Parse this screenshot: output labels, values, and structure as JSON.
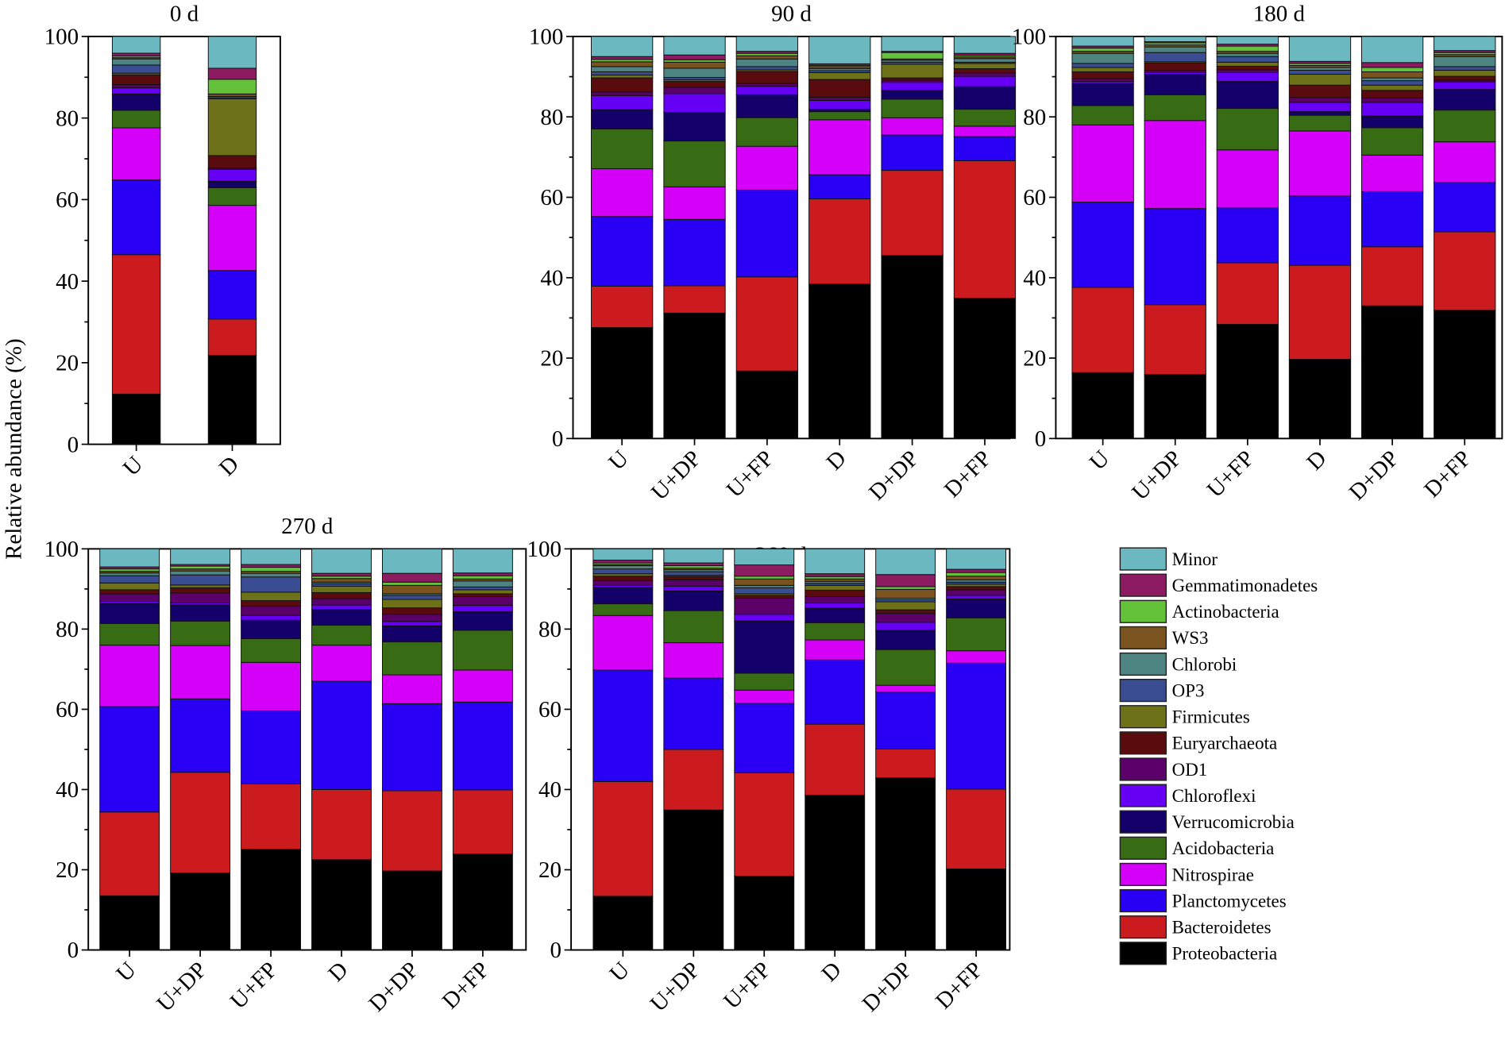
{
  "chart_data": {
    "type": "bar",
    "stacked": true,
    "ylabel": "Relative abundance (%)",
    "ylim": [
      0,
      100
    ],
    "yticks": [
      0,
      20,
      40,
      60,
      80,
      100
    ],
    "legend_position": "bottom-right",
    "series_names": [
      "Proteobacteria",
      "Bacteroidetes",
      "Planctomycetes",
      "Nitrospirae",
      "Acidobacteria",
      "Verrucomicrobia",
      "Chloroflexi",
      "OD1",
      "Euryarchaeota",
      "Firmicutes",
      "OP3",
      "Chlorobi",
      "WS3",
      "Actinobacteria",
      "Gemmatimonadetes",
      "Minor"
    ],
    "colors": {
      "Proteobacteria": "#000000",
      "Bacteroidetes": "#cc1b1e",
      "Planctomycetes": "#2a00f5",
      "Nitrospirae": "#d400f7",
      "Acidobacteria": "#386c14",
      "Verrucomicrobia": "#13006a",
      "Chloroflexi": "#6600f5",
      "OD1": "#5a0068",
      "Euryarchaeota": "#5a0b0d",
      "Firmicutes": "#6d7218",
      "OP3": "#3a4d92",
      "Chlorobi": "#4d8482",
      "WS3": "#7a531e",
      "Actinobacteria": "#64c23a",
      "Gemmatimonadetes": "#8c1b62",
      "Minor": "#6bb8c0"
    },
    "legend_order": [
      "Minor",
      "Gemmatimonadetes",
      "Actinobacteria",
      "WS3",
      "Chlorobi",
      "OP3",
      "Firmicutes",
      "Euryarchaeota",
      "OD1",
      "Chloroflexi",
      "Verrucomicrobia",
      "Acidobacteria",
      "Nitrospirae",
      "Planctomycetes",
      "Bacteroidetes",
      "Proteobacteria"
    ],
    "panels": [
      {
        "title": "0 d",
        "categories": [
          "U",
          "D"
        ],
        "series": [
          {
            "name": "Proteobacteria",
            "values": [
              12.3,
              21.8
            ]
          },
          {
            "name": "Bacteroidetes",
            "values": [
              34.2,
              8.9
            ]
          },
          {
            "name": "Planctomycetes",
            "values": [
              18.3,
              11.9
            ]
          },
          {
            "name": "Nitrospirae",
            "values": [
              12.8,
              16.0
            ]
          },
          {
            "name": "Acidobacteria",
            "values": [
              4.3,
              4.3
            ]
          },
          {
            "name": "Verrucomicrobia",
            "values": [
              4.0,
              1.6
            ]
          },
          {
            "name": "Chloroflexi",
            "values": [
              1.5,
              2.9
            ]
          },
          {
            "name": "OD1",
            "values": [
              0.8,
              0.3
            ]
          },
          {
            "name": "Euryarchaeota",
            "values": [
              2.4,
              3.1
            ]
          },
          {
            "name": "Firmicutes",
            "values": [
              0.4,
              13.9
            ]
          },
          {
            "name": "OP3",
            "values": [
              2.0,
              0.3
            ]
          },
          {
            "name": "Chlorobi",
            "values": [
              1.5,
              0.3
            ]
          },
          {
            "name": "WS3",
            "values": [
              0.3,
              0.6
            ]
          },
          {
            "name": "Actinobacteria",
            "values": [
              0.4,
              3.6
            ]
          },
          {
            "name": "Gemmatimonadetes",
            "values": [
              0.7,
              2.7
            ]
          },
          {
            "name": "Minor",
            "values": [
              4.1,
              7.8
            ]
          }
        ]
      },
      {
        "title": "90 d",
        "categories": [
          "U",
          "U+DP",
          "U+FP",
          "D",
          "D+DP",
          "D+FP"
        ],
        "series": [
          {
            "name": "Proteobacteria",
            "values": [
              27.6,
              31.2,
              16.8,
              38.4,
              45.5,
              34.9
            ]
          },
          {
            "name": "Bacteroidetes",
            "values": [
              10.3,
              6.8,
              23.4,
              21.2,
              21.2,
              34.2
            ]
          },
          {
            "name": "Planctomycetes",
            "values": [
              17.3,
              16.5,
              21.6,
              6.0,
              8.8,
              6.0
            ]
          },
          {
            "name": "Nitrospirae",
            "values": [
              11.9,
              8.1,
              10.9,
              13.7,
              4.3,
              2.6
            ]
          },
          {
            "name": "Acidobacteria",
            "values": [
              9.9,
              11.4,
              7.1,
              2.0,
              4.6,
              4.2
            ]
          },
          {
            "name": "Verrucomicrobia",
            "values": [
              4.8,
              7.1,
              5.7,
              0.6,
              2.2,
              5.6
            ]
          },
          {
            "name": "Chloroflexi",
            "values": [
              3.5,
              4.7,
              2.1,
              2.2,
              2.0,
              2.6
            ]
          },
          {
            "name": "OD1",
            "values": [
              0.9,
              1.6,
              0.7,
              0.8,
              0.5,
              0.8
            ]
          },
          {
            "name": "Euryarchaeota",
            "values": [
              3.5,
              1.4,
              3.0,
              4.4,
              0.6,
              1.1
            ]
          },
          {
            "name": "Firmicutes",
            "values": [
              0.7,
              0.4,
              0.4,
              1.7,
              3.4,
              1.3
            ]
          },
          {
            "name": "OP3",
            "values": [
              0.8,
              0.6,
              0.8,
              0.5,
              0.5,
              0.3
            ]
          },
          {
            "name": "Chlorobi",
            "values": [
              1.3,
              2.3,
              1.9,
              0.5,
              0.5,
              0.9
            ]
          },
          {
            "name": "WS3",
            "values": [
              1.2,
              1.5,
              0.8,
              0.5,
              0.3,
              0.4
            ]
          },
          {
            "name": "Actinobacteria",
            "values": [
              0.6,
              0.6,
              0.6,
              0.3,
              1.6,
              0.4
            ]
          },
          {
            "name": "Gemmatimonadetes",
            "values": [
              0.7,
              1.2,
              0.5,
              0.4,
              0.3,
              0.5
            ]
          },
          {
            "name": "Minor",
            "values": [
              5.0,
              4.6,
              3.7,
              6.8,
              3.7,
              4.2
            ]
          }
        ]
      },
      {
        "title": "180 d",
        "categories": [
          "U",
          "U+DP",
          "U+FP",
          "D",
          "D+DP",
          "D+FP"
        ],
        "series": [
          {
            "name": "Proteobacteria",
            "values": [
              16.4,
              15.9,
              28.4,
              19.7,
              33.0,
              31.9
            ]
          },
          {
            "name": "Bacteroidetes",
            "values": [
              21.2,
              17.4,
              15.3,
              23.4,
              14.7,
              19.5
            ]
          },
          {
            "name": "Planctomycetes",
            "values": [
              21.2,
              23.9,
              13.7,
              17.2,
              13.7,
              12.3
            ]
          },
          {
            "name": "Nitrospirae",
            "values": [
              19.2,
              21.9,
              14.4,
              16.2,
              9.1,
              10.1
            ]
          },
          {
            "name": "Acidobacteria",
            "values": [
              4.8,
              6.4,
              10.3,
              3.9,
              6.8,
              7.9
            ]
          },
          {
            "name": "Verrucomicrobia",
            "values": [
              5.5,
              5.1,
              6.7,
              0.9,
              2.9,
              5.1
            ]
          },
          {
            "name": "Chloroflexi",
            "values": [
              0.5,
              0.4,
              2.2,
              2.3,
              3.4,
              1.9
            ]
          },
          {
            "name": "OD1",
            "values": [
              0.7,
              0.5,
              0.7,
              1.2,
              1.1,
              0.4
            ]
          },
          {
            "name": "Euryarchaeota",
            "values": [
              1.7,
              1.9,
              0.9,
              3.1,
              1.9,
              1.0
            ]
          },
          {
            "name": "Firmicutes",
            "values": [
              1.1,
              0.3,
              1.0,
              2.7,
              1.3,
              1.5
            ]
          },
          {
            "name": "OP3",
            "values": [
              1.0,
              2.3,
              1.4,
              1.0,
              1.1,
              0.9
            ]
          },
          {
            "name": "Chlorobi",
            "values": [
              2.5,
              1.4,
              0.8,
              0.7,
              0.7,
              2.5
            ]
          },
          {
            "name": "WS3",
            "values": [
              0.5,
              0.5,
              0.5,
              0.5,
              1.5,
              0.5
            ]
          },
          {
            "name": "Actinobacteria",
            "values": [
              0.8,
              0.5,
              1.3,
              0.5,
              1.1,
              0.5
            ]
          },
          {
            "name": "Gemmatimonadetes",
            "values": [
              0.5,
              0.3,
              0.5,
              0.5,
              1.2,
              0.5
            ]
          },
          {
            "name": "Minor",
            "values": [
              2.4,
              1.3,
              1.9,
              6.2,
              6.5,
              3.5
            ]
          }
        ]
      },
      {
        "title": "270 d",
        "categories": [
          "U",
          "U+DP",
          "U+FP",
          "D",
          "D+DP",
          "D+FP"
        ],
        "series": [
          {
            "name": "Proteobacteria",
            "values": [
              13.5,
              19.2,
              25.1,
              22.5,
              19.7,
              23.9
            ]
          },
          {
            "name": "Bacteroidetes",
            "values": [
              20.9,
              25.1,
              16.3,
              17.5,
              20.0,
              16.0
            ]
          },
          {
            "name": "Planctomycetes",
            "values": [
              26.3,
              18.3,
              18.2,
              27.0,
              21.7,
              21.9
            ]
          },
          {
            "name": "Nitrospirae",
            "values": [
              15.3,
              13.3,
              12.1,
              9.0,
              7.2,
              8.0
            ]
          },
          {
            "name": "Acidobacteria",
            "values": [
              5.4,
              6.1,
              5.9,
              5.0,
              8.2,
              9.9
            ]
          },
          {
            "name": "Verrucomicrobia",
            "values": [
              5.0,
              4.0,
              4.6,
              3.9,
              4.0,
              4.6
            ]
          },
          {
            "name": "Chloroflexi",
            "values": [
              0.5,
              0.5,
              1.2,
              1.1,
              1.1,
              1.6
            ]
          },
          {
            "name": "OD1",
            "values": [
              1.9,
              2.5,
              2.3,
              1.6,
              1.8,
              2.2
            ]
          },
          {
            "name": "Euryarchaeota",
            "values": [
              1.0,
              1.3,
              1.4,
              1.5,
              1.6,
              0.7
            ]
          },
          {
            "name": "Firmicutes",
            "values": [
              1.7,
              0.7,
              2.1,
              1.6,
              2.1,
              1.0
            ]
          },
          {
            "name": "OP3",
            "values": [
              1.8,
              2.5,
              3.8,
              0.6,
              1.0,
              0.7
            ]
          },
          {
            "name": "Chlorobi",
            "values": [
              0.7,
              1.0,
              0.9,
              0.4,
              0.4,
              1.5
            ]
          },
          {
            "name": "WS3",
            "values": [
              0.4,
              0.5,
              0.5,
              0.9,
              2.1,
              0.5
            ]
          },
          {
            "name": "Actinobacteria",
            "values": [
              0.6,
              0.7,
              1.0,
              0.6,
              0.8,
              0.8
            ]
          },
          {
            "name": "Gemmatimonadetes",
            "values": [
              0.5,
              0.4,
              0.7,
              0.7,
              2.2,
              0.7
            ]
          },
          {
            "name": "Minor",
            "values": [
              4.5,
              3.9,
              3.9,
              6.1,
              6.1,
              6.0
            ]
          }
        ]
      },
      {
        "title": "360 d",
        "categories": [
          "U",
          "U+DP",
          "U+FP",
          "D",
          "D+DP",
          "D+FP"
        ],
        "series": [
          {
            "name": "Proteobacteria",
            "values": [
              13.4,
              34.9,
              18.4,
              38.6,
              42.9,
              20.2
            ]
          },
          {
            "name": "Bacteroidetes",
            "values": [
              28.6,
              15.1,
              25.8,
              17.7,
              7.2,
              19.9
            ]
          },
          {
            "name": "Planctomycetes",
            "values": [
              27.8,
              17.8,
              17.3,
              16.0,
              14.2,
              31.4
            ]
          },
          {
            "name": "Nitrospirae",
            "values": [
              13.6,
              8.8,
              3.3,
              5.0,
              1.7,
              3.1
            ]
          },
          {
            "name": "Acidobacteria",
            "values": [
              2.9,
              8.0,
              4.2,
              4.3,
              8.9,
              8.2
            ]
          },
          {
            "name": "Verrucomicrobia",
            "values": [
              4.1,
              4.9,
              13.0,
              3.6,
              4.8,
              4.7
            ]
          },
          {
            "name": "Chloroflexi",
            "values": [
              0.5,
              1.2,
              1.7,
              1.3,
              2.0,
              0.9
            ]
          },
          {
            "name": "OD1",
            "values": [
              1.2,
              1.6,
              4.0,
              1.6,
              2.2,
              1.4
            ]
          },
          {
            "name": "Euryarchaeota",
            "values": [
              1.1,
              0.8,
              0.7,
              1.6,
              0.9,
              0.8
            ]
          },
          {
            "name": "Firmicutes",
            "values": [
              0.6,
              0.3,
              0.4,
              1.2,
              2.0,
              0.6
            ]
          },
          {
            "name": "OP3",
            "values": [
              1.2,
              0.9,
              1.5,
              0.5,
              0.5,
              0.5
            ]
          },
          {
            "name": "Chlorobi",
            "values": [
              0.8,
              0.5,
              0.6,
              0.5,
              0.4,
              0.6
            ]
          },
          {
            "name": "WS3",
            "values": [
              0.3,
              0.4,
              1.6,
              0.6,
              2.2,
              0.9
            ]
          },
          {
            "name": "Actinobacteria",
            "values": [
              0.4,
              0.6,
              0.7,
              0.6,
              0.7,
              0.9
            ]
          },
          {
            "name": "Gemmatimonadetes",
            "values": [
              0.7,
              0.7,
              2.8,
              0.7,
              3.0,
              0.8
            ]
          },
          {
            "name": "Minor",
            "values": [
              2.8,
              3.5,
              4.0,
              6.2,
              6.4,
              5.1
            ]
          }
        ]
      }
    ]
  }
}
